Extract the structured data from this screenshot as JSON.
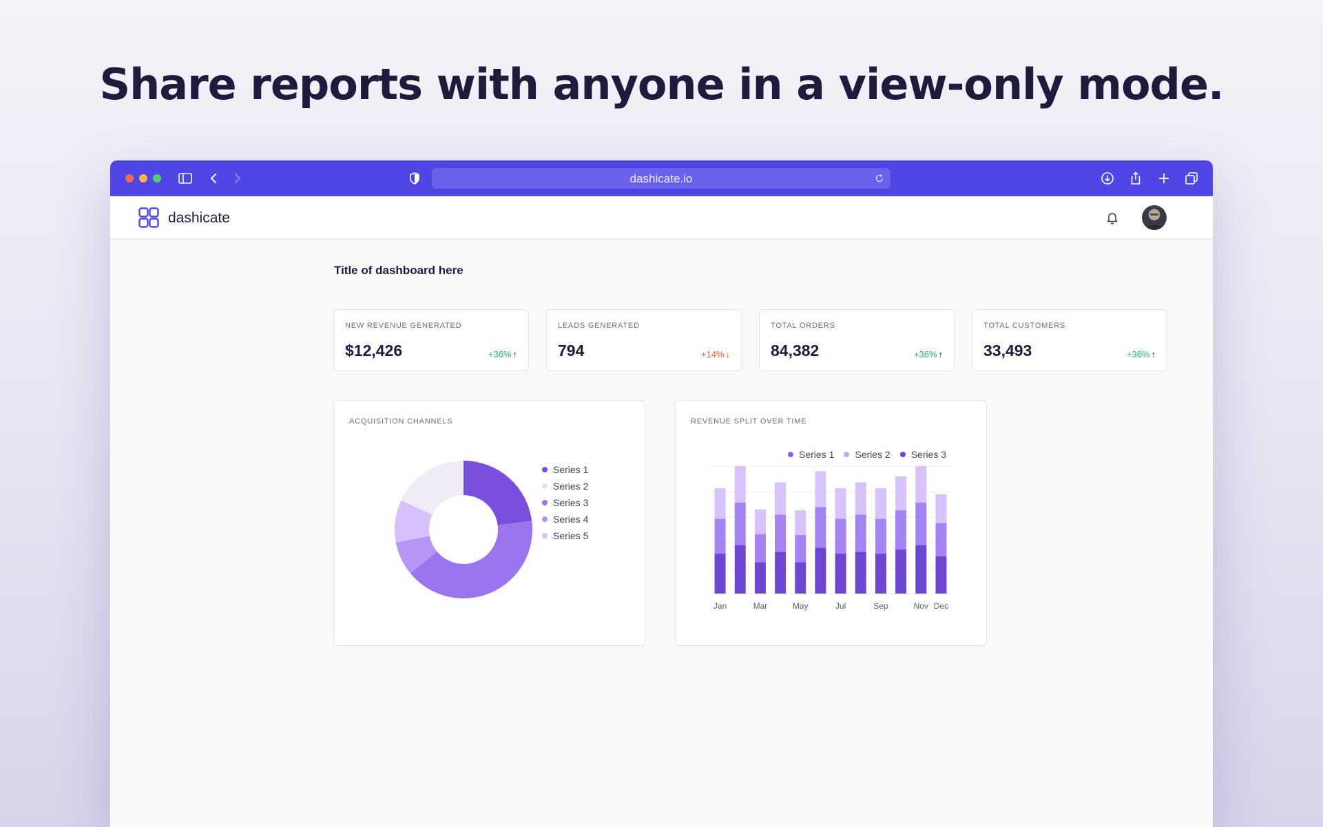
{
  "headline": "Share reports with anyone in a view-only mode.",
  "browser": {
    "url": "dashicate.io",
    "icons": [
      "sidebar-icon",
      "back-icon",
      "forward-icon",
      "shield-icon",
      "reload-icon",
      "download-icon",
      "share-icon",
      "new-tab-icon",
      "tabs-icon"
    ]
  },
  "app": {
    "brand": "dashicate",
    "dashboard_title": "Title of dashboard here"
  },
  "kpis": [
    {
      "label": "NEW REVENUE GENERATED",
      "value": "$12,426",
      "delta": "+36%",
      "trend": "up"
    },
    {
      "label": "LEADS GENERATED",
      "value": "794",
      "delta": "+14%",
      "trend": "down"
    },
    {
      "label": "TOTAL ORDERS",
      "value": "84,382",
      "delta": "+36%",
      "trend": "up"
    },
    {
      "label": "TOTAL CUSTOMERS",
      "value": "33,493",
      "delta": "+36%",
      "trend": "up"
    }
  ],
  "colors": {
    "accent": "#4f46e5",
    "up": "#22b573",
    "down": "#f0592e",
    "series1": "#6d46d1",
    "series2": "#d6c3fb",
    "series3": "#9b7bf0"
  },
  "acquisition": {
    "title": "ACQUISITION CHANNELS"
  },
  "revenue": {
    "title": "REVENUE SPLIT OVER TIME"
  },
  "chart_data": [
    {
      "type": "pie",
      "title": "ACQUISITION CHANNELS",
      "donut": true,
      "legend": "right",
      "series": [
        {
          "name": "Series 1",
          "value": 23,
          "color": "#7b4fde"
        },
        {
          "name": "Series 2",
          "value": 18,
          "color": "#efecf6"
        },
        {
          "name": "Series 3",
          "value": 41,
          "color": "#9b75ef"
        },
        {
          "name": "Series 4",
          "value": 8,
          "color": "#b595f5"
        },
        {
          "name": "Series 5",
          "value": 10,
          "color": "#d7c0fb"
        }
      ],
      "slice_order": [
        "Series 1",
        "Series 3",
        "Series 4",
        "Series 5",
        "Series 2"
      ]
    },
    {
      "type": "bar",
      "stacked": true,
      "title": "REVENUE SPLIT OVER TIME",
      "legend": "top-right",
      "grid": true,
      "categories": [
        "Jan",
        "Feb",
        "Mar",
        "Apr",
        "May",
        "Jun",
        "Jul",
        "Aug",
        "Sep",
        "Oct",
        "Nov",
        "Dec"
      ],
      "tick_labels": [
        "Jan",
        "Mar",
        "May",
        "Jul",
        "Sep",
        "Nov",
        "Dec"
      ],
      "ylim": [
        0,
        150
      ],
      "series": [
        {
          "name": "Series 1",
          "color": "#6d46d1",
          "values": [
            47,
            57,
            37,
            49,
            37,
            54,
            47,
            49,
            47,
            52,
            57,
            44
          ]
        },
        {
          "name": "Series 3",
          "color": "#a384f2",
          "values": [
            41,
            50,
            33,
            44,
            32,
            48,
            41,
            44,
            41,
            46,
            50,
            39
          ]
        },
        {
          "name": "Series 2",
          "color": "#d6c3fb",
          "values": [
            36,
            43,
            29,
            38,
            29,
            42,
            36,
            38,
            36,
            40,
            43,
            34
          ]
        }
      ],
      "legend_entries": [
        {
          "name": "Series 1",
          "color": "#8c62e8"
        },
        {
          "name": "Series 2",
          "color": "#c5a9f8"
        },
        {
          "name": "Series 3",
          "color": "#6d46d1"
        }
      ]
    }
  ]
}
